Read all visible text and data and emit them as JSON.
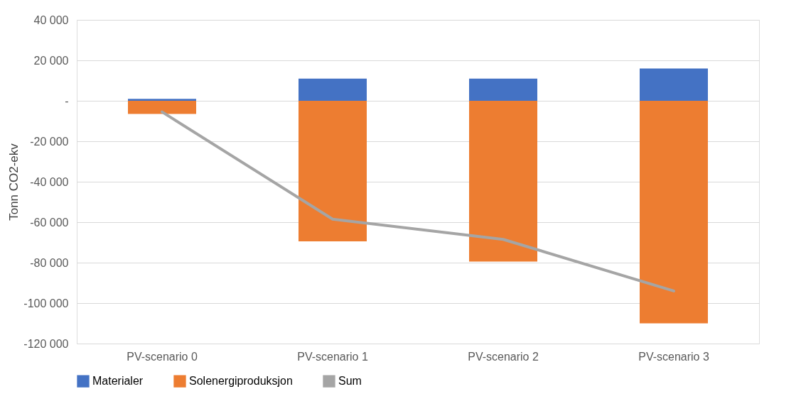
{
  "chart_data": {
    "type": "bar",
    "stacked": true,
    "ylabel": "Tonn CO2-ekv",
    "categories": [
      "PV-scenario 0",
      "PV-scenario 1",
      "PV-scenario 2",
      "PV-scenario 3"
    ],
    "series": [
      {
        "name": "Materialer",
        "color": "#4472c4",
        "values": [
          1000,
          11000,
          11000,
          16000
        ]
      },
      {
        "name": "Solenergiproduksjon",
        "color": "#ed7d31",
        "values": [
          -6500,
          -69500,
          -79500,
          -110000
        ]
      },
      {
        "name": "Sum",
        "color": "#a5a5a5",
        "type": "line",
        "values": [
          -5500,
          -58500,
          -68500,
          -94000
        ]
      }
    ],
    "ylim": [
      -120000,
      40000
    ],
    "yticks": [
      {
        "value": -120000,
        "label": "-120 000"
      },
      {
        "value": -100000,
        "label": "-100 000"
      },
      {
        "value": -80000,
        "label": "-80 000"
      },
      {
        "value": -60000,
        "label": "-60 000"
      },
      {
        "value": -40000,
        "label": "-40 000"
      },
      {
        "value": -20000,
        "label": "-20 000"
      },
      {
        "value": 0,
        "label": "-"
      },
      {
        "value": 20000,
        "label": "20 000"
      },
      {
        "value": 40000,
        "label": "40 000"
      }
    ],
    "grid": "y",
    "legend": "bottom"
  }
}
